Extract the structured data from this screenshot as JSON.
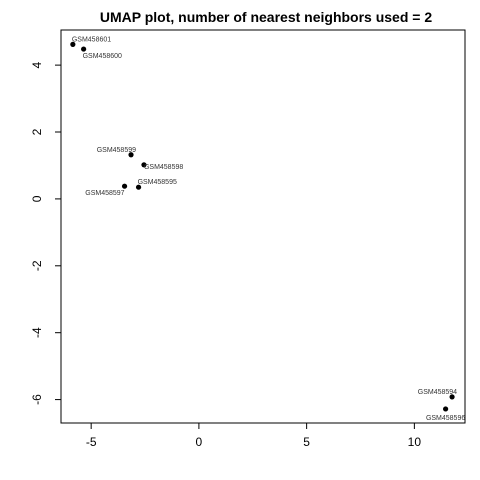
{
  "chart_data": {
    "type": "scatter",
    "title": "UMAP plot, number of nearest neighbors used = 2",
    "xlabel": "",
    "ylabel": "",
    "xlim": [
      -6.4,
      12.35
    ],
    "ylim": [
      -6.7,
      5.05
    ],
    "x_ticks": [
      -5,
      0,
      5,
      10
    ],
    "y_ticks": [
      -6,
      -4,
      -2,
      0,
      2,
      4
    ],
    "grid": false,
    "points": [
      {
        "label": "GSM458601",
        "x": -5.85,
        "y": 4.62,
        "label_pos": "above-right"
      },
      {
        "label": "GSM458600",
        "x": -5.35,
        "y": 4.48,
        "label_pos": "below-right"
      },
      {
        "label": "GSM458599",
        "x": -3.15,
        "y": 1.32,
        "label_pos": "above-left"
      },
      {
        "label": "GSM458598",
        "x": -2.55,
        "y": 1.02,
        "label_pos": "right"
      },
      {
        "label": "GSM458597",
        "x": -3.45,
        "y": 0.38,
        "label_pos": "below-left"
      },
      {
        "label": "GSM458595",
        "x": -2.8,
        "y": 0.35,
        "label_pos": "above-right"
      },
      {
        "label": "GSM458594",
        "x": 11.75,
        "y": -5.92,
        "label_pos": "above-left"
      },
      {
        "label": "GSM458596",
        "x": 11.45,
        "y": -6.28,
        "label_pos": "below"
      }
    ]
  }
}
